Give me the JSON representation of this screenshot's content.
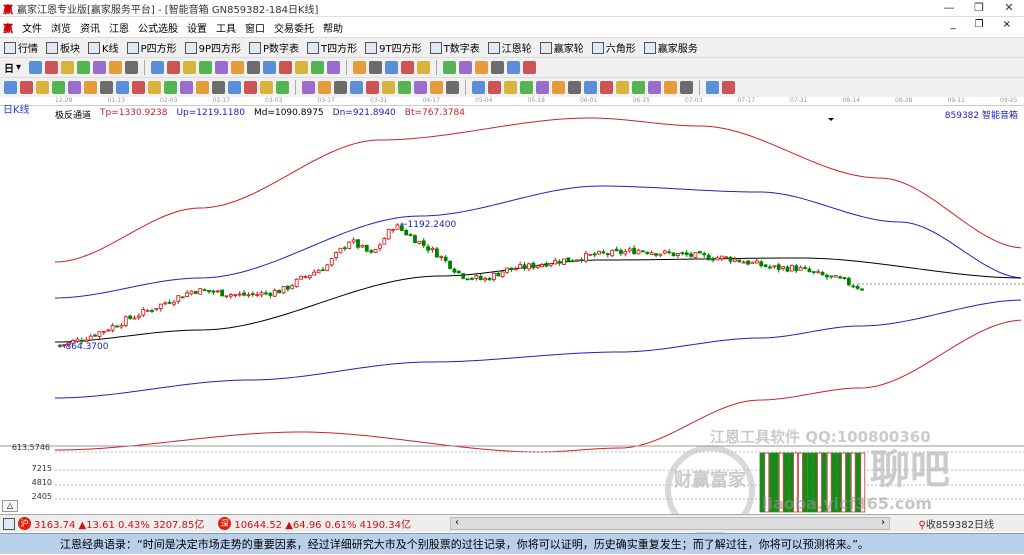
{
  "window": {
    "title": "赢家江恩专业版[赢家服务平台] - [智能音箱  GN859382-184日K线]",
    "logo": "赢",
    "min": "—",
    "restore": "❐",
    "close": "✕"
  },
  "menu": {
    "items": [
      "文件",
      "浏览",
      "资讯",
      "江恩",
      "公式选股",
      "设置",
      "工具",
      "窗口",
      "交易委托",
      "帮助"
    ],
    "mdi": [
      "_",
      "❐",
      "×"
    ]
  },
  "toolbar1": {
    "items": [
      {
        "icon": "grid-icon",
        "label": "行情"
      },
      {
        "icon": "blocks-icon",
        "label": "板块"
      },
      {
        "icon": "kline-icon",
        "label": "K线"
      },
      {
        "icon": "P4",
        "label": "P四方形"
      },
      {
        "icon": "9P",
        "label": "9P四方形"
      },
      {
        "icon": "PN",
        "label": "P数字表"
      },
      {
        "icon": "T4",
        "label": "T四方形"
      },
      {
        "icon": "9T",
        "label": "9T四方形"
      },
      {
        "icon": "TN",
        "label": "T数字表"
      },
      {
        "icon": "wheel-icon",
        "label": "江恩轮"
      },
      {
        "icon": "winner-wheel-icon",
        "label": "赢家轮"
      },
      {
        "icon": "hexagon-icon",
        "label": "六角形"
      },
      {
        "icon": "dollar-icon",
        "label": "赢家服务"
      }
    ]
  },
  "toolbar2": {
    "period": "日"
  },
  "date_axis": [
    "12-29",
    "01-13",
    "02-03",
    "02-17",
    "03-03",
    "03-17",
    "03-31",
    "04-17",
    "05-04",
    "05-18",
    "06-01",
    "06-15",
    "07-03",
    "07-17",
    "07-31",
    "08-14",
    "08-28",
    "09-11",
    "09-25"
  ],
  "chart": {
    "period_label": "日K线",
    "indicator_name": "极反通道",
    "tp": "Tp=1330.9238",
    "up": "Up=1219.1180",
    "md": "Md=1090.8975",
    "dn": "Dn=921.8940",
    "bt": "Bt=767.3784",
    "stock": "859382 智能音箱",
    "high_label": "1192.2400",
    "low_label": "864.3700",
    "bottom_value": "613.5746",
    "colors": {
      "tp": "#d02020",
      "up": "#2020c0",
      "md": "#000000",
      "up_candle": "#d01010",
      "down_candle": "#008000"
    }
  },
  "chart_data": {
    "type": "candlestick",
    "closes": [
      864,
      880,
      903,
      930,
      954,
      980,
      1005,
      1000,
      992,
      995,
      1005,
      1040,
      1069,
      1133,
      1095,
      1172,
      1133,
      1095,
      1044,
      1031,
      1057,
      1065,
      1077,
      1085,
      1095,
      1100,
      1108,
      1100,
      1095,
      1090,
      1087,
      1075,
      1062,
      1062,
      1045,
      1031,
      1010
    ],
    "high": 1192.24,
    "low": 864.37
  },
  "volume": {
    "labels": [
      "7215",
      "4810",
      "2405"
    ]
  },
  "watermark": {
    "line1": "江恩工具软件  QQ:100800360",
    "line2": "聊吧",
    "line3": "liaoba.yicf365.com",
    "seal": "财赢富家"
  },
  "status": {
    "sh_badge": "沪",
    "sh": "3163.74 ▲13.61 0.43% 3207.85亿",
    "sz_badge": "深",
    "sz": "10644.52 ▲64.96 0.61% 4190.34亿",
    "right": "收859382日线"
  },
  "ticker": "江恩经典语录：“时间是决定市场走势的重要因素，经过详细研究大市及个别股票的过往记录，你将可以证明，历史确实重复发生；而了解过往，你将可以预测将来。”。"
}
